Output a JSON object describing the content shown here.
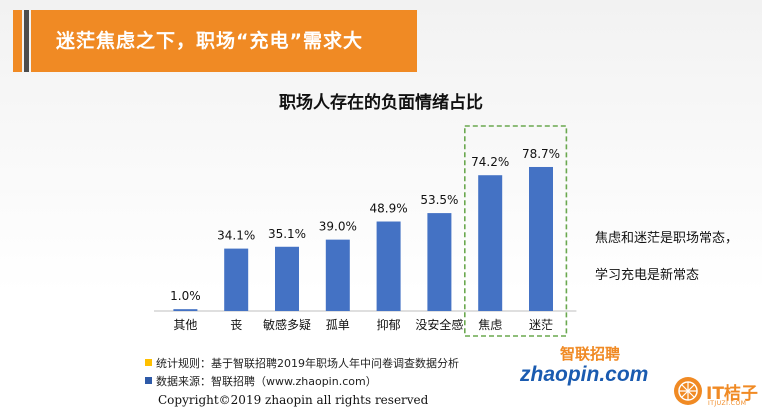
{
  "colors": {
    "accent": "#f08a24",
    "banner": "#f08a24",
    "bar": "#4472c4",
    "highlight_box": "#6aa84f",
    "legend_yellow": "#ffc000",
    "legend_blue": "#2e5aa8"
  },
  "header": {
    "title": "迷茫焦虑之下，职场“充电”需求大"
  },
  "chart_data": {
    "type": "bar",
    "title": "职场人存在的负面情绪占比",
    "categories": [
      "其他",
      "丧",
      "敏感多疑",
      "孤单",
      "抑郁",
      "没安全感",
      "焦虑",
      "迷茫"
    ],
    "values": [
      1.0,
      34.1,
      35.1,
      39.0,
      48.9,
      53.5,
      74.2,
      78.7
    ],
    "value_labels": [
      "1.0%",
      "34.1%",
      "35.1%",
      "39.0%",
      "48.9%",
      "53.5%",
      "74.2%",
      "78.7%"
    ],
    "unit": "%",
    "ylim": [
      0,
      100
    ],
    "xlabel": "",
    "ylabel": "",
    "grid": false,
    "highlighted_categories": [
      "焦虑",
      "迷茫"
    ]
  },
  "side_note": {
    "line1": "焦虑和迷茫是职场常态，",
    "line2": "学习充电是新常态"
  },
  "footer": {
    "rule_label": "统计规则：基于智联招聘2019年职场人年中问卷调查数据分析",
    "source_label": "数据来源：智联招聘（www.zhaopin.com）",
    "copyright": "Copyright©2019 zhaopin all rights reserved"
  },
  "logos": {
    "zhilian_cn": "智联招聘",
    "zhaopin": "zhaopin.com",
    "it_brand": "IT桔子",
    "it_url": "ITJUZI.COM"
  }
}
